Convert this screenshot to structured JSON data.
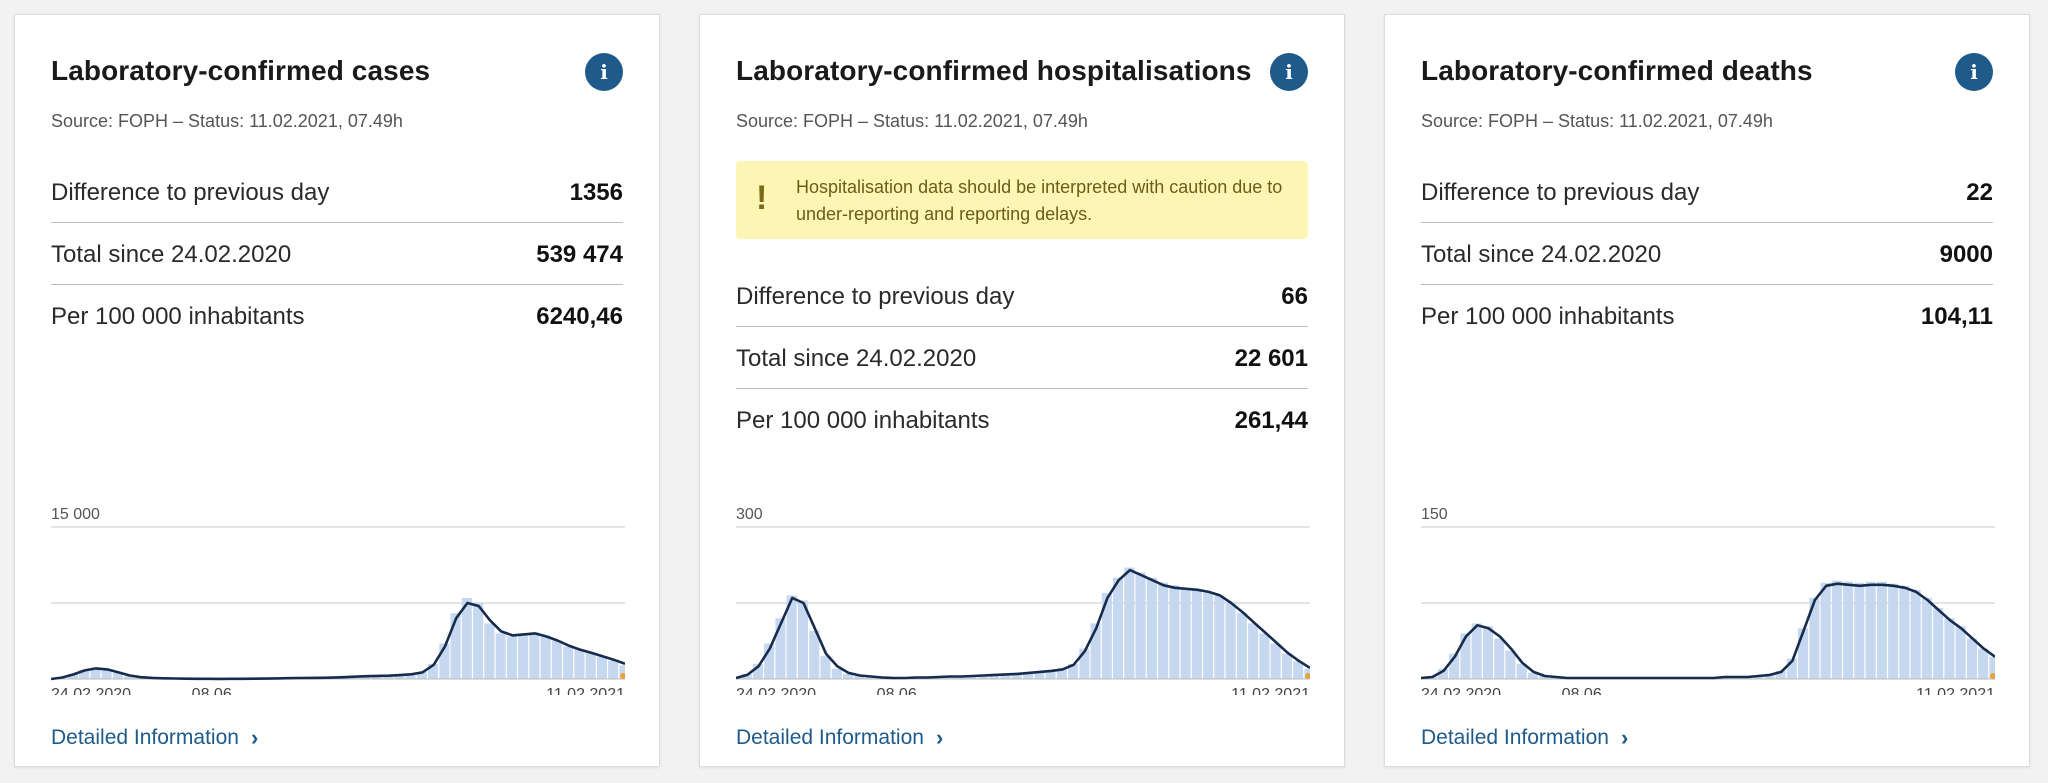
{
  "colors": {
    "accent": "#1e5a8a",
    "bars": "#c5d8ef",
    "barEdge": "#ffffff",
    "line": "#172b4d",
    "grid": "#c8c8c8",
    "warning_bg": "#fdf5b3",
    "end_marker": "#e8a33c"
  },
  "cards": [
    {
      "title": "Laboratory-confirmed cases",
      "source": "Source: FOPH – Status: 11.02.2021, 07.49h",
      "warning": "",
      "stats": [
        {
          "label": "Difference to previous day",
          "value": "1356"
        },
        {
          "label": "Total since 24.02.2020",
          "value": "539 474"
        },
        {
          "label": "Per 100 000 inhabitants",
          "value": "6240,46"
        }
      ],
      "link": "Detailed Information",
      "info_icon": "info-icon",
      "chevron_icon": "chevron-right-icon"
    },
    {
      "title": "Laboratory-confirmed hospitalisations",
      "source": "Source: FOPH – Status: 11.02.2021, 07.49h",
      "warning": "Hospitalisation data should be interpreted with caution due to under-reporting and reporting delays.",
      "warning_icon": "exclamation-icon",
      "stats": [
        {
          "label": "Difference to previous day",
          "value": "66"
        },
        {
          "label": "Total since 24.02.2020",
          "value": "22 601"
        },
        {
          "label": "Per 100 000 inhabitants",
          "value": "261,44"
        }
      ],
      "link": "Detailed Information",
      "info_icon": "info-icon",
      "chevron_icon": "chevron-right-icon"
    },
    {
      "title": "Laboratory-confirmed deaths",
      "source": "Source: FOPH – Status: 11.02.2021, 07.49h",
      "warning": "",
      "stats": [
        {
          "label": "Difference to previous day",
          "value": "22"
        },
        {
          "label": "Total since 24.02.2020",
          "value": "9000"
        },
        {
          "label": "Per 100 000 inhabitants",
          "value": "104,11"
        }
      ],
      "link": "Detailed Information",
      "info_icon": "info-icon",
      "chevron_icon": "chevron-right-icon"
    }
  ],
  "chart_data": [
    {
      "type": "area",
      "ymax_label": "15 000",
      "ylim": [
        0,
        15000
      ],
      "x_ticks": [
        "24.02.2020",
        "08.06",
        "11.02.2021"
      ],
      "x_tick_fracs": [
        0.0,
        0.28,
        1.0
      ],
      "grid": true,
      "series": [
        {
          "values": [
            0,
            200,
            500,
            900,
            1100,
            1000,
            600,
            300,
            150,
            100,
            60,
            40,
            30,
            20,
            15,
            15,
            20,
            25,
            30,
            40,
            60,
            80,
            100,
            110,
            120,
            150,
            200,
            250,
            300,
            300,
            350,
            400,
            500,
            700,
            1500,
            3500,
            6500,
            8000,
            7500,
            5500,
            4500,
            4200,
            4500,
            4600,
            4300,
            3800,
            3200,
            2900,
            2600,
            2200,
            1800,
            1356
          ]
        },
        {
          "values": [
            0,
            150,
            450,
            850,
            1050,
            950,
            650,
            350,
            180,
            110,
            70,
            45,
            32,
            22,
            16,
            14,
            18,
            22,
            28,
            38,
            55,
            75,
            95,
            105,
            115,
            140,
            180,
            230,
            280,
            310,
            330,
            380,
            460,
            650,
            1400,
            3200,
            6000,
            7500,
            7200,
            5800,
            4700,
            4300,
            4400,
            4500,
            4200,
            3800,
            3300,
            2900,
            2600,
            2250,
            1900,
            1500
          ]
        }
      ]
    },
    {
      "type": "area",
      "ymax_label": "300",
      "ylim": [
        0,
        300
      ],
      "x_ticks": [
        "24.02.2020",
        "08.06",
        "11.02.2021"
      ],
      "x_tick_fracs": [
        0.0,
        0.28,
        1.0
      ],
      "grid": true,
      "series": [
        {
          "values": [
            3,
            10,
            30,
            70,
            120,
            165,
            155,
            95,
            45,
            20,
            10,
            6,
            4,
            3,
            2,
            2,
            3,
            3,
            4,
            5,
            5,
            6,
            7,
            8,
            9,
            10,
            12,
            14,
            16,
            20,
            30,
            60,
            110,
            170,
            200,
            220,
            210,
            200,
            190,
            185,
            180,
            175,
            170,
            165,
            150,
            130,
            110,
            90,
            70,
            50,
            35,
            20
          ]
        },
        {
          "values": [
            2,
            8,
            25,
            60,
            110,
            160,
            150,
            100,
            50,
            25,
            12,
            7,
            5,
            3,
            2,
            2,
            3,
            3,
            4,
            5,
            5,
            6,
            7,
            8,
            9,
            10,
            12,
            14,
            16,
            19,
            28,
            55,
            100,
            160,
            195,
            215,
            205,
            195,
            185,
            180,
            178,
            176,
            172,
            165,
            150,
            132,
            112,
            92,
            72,
            52,
            36,
            22
          ]
        }
      ]
    },
    {
      "type": "area",
      "ymax_label": "150",
      "ylim": [
        0,
        150
      ],
      "x_ticks": [
        "24.02.2020",
        "08.06",
        "11.02.2021"
      ],
      "x_tick_fracs": [
        0.0,
        0.28,
        1.0
      ],
      "grid": true,
      "series": [
        {
          "values": [
            1,
            3,
            10,
            25,
            45,
            55,
            52,
            40,
            28,
            15,
            6,
            3,
            2,
            1,
            1,
            1,
            1,
            1,
            1,
            1,
            1,
            1,
            1,
            1,
            1,
            1,
            1,
            2,
            2,
            3,
            3,
            4,
            8,
            20,
            50,
            80,
            95,
            97,
            96,
            95,
            96,
            96,
            94,
            92,
            88,
            80,
            70,
            60,
            52,
            40,
            30,
            22
          ]
        },
        {
          "values": [
            1,
            2,
            8,
            22,
            42,
            53,
            50,
            42,
            30,
            16,
            7,
            3,
            2,
            1,
            1,
            1,
            1,
            1,
            1,
            1,
            1,
            1,
            1,
            1,
            1,
            1,
            1,
            2,
            2,
            2,
            3,
            4,
            7,
            18,
            48,
            78,
            92,
            94,
            93,
            92,
            93,
            93,
            92,
            90,
            86,
            78,
            68,
            58,
            50,
            40,
            30,
            22
          ]
        }
      ]
    }
  ]
}
